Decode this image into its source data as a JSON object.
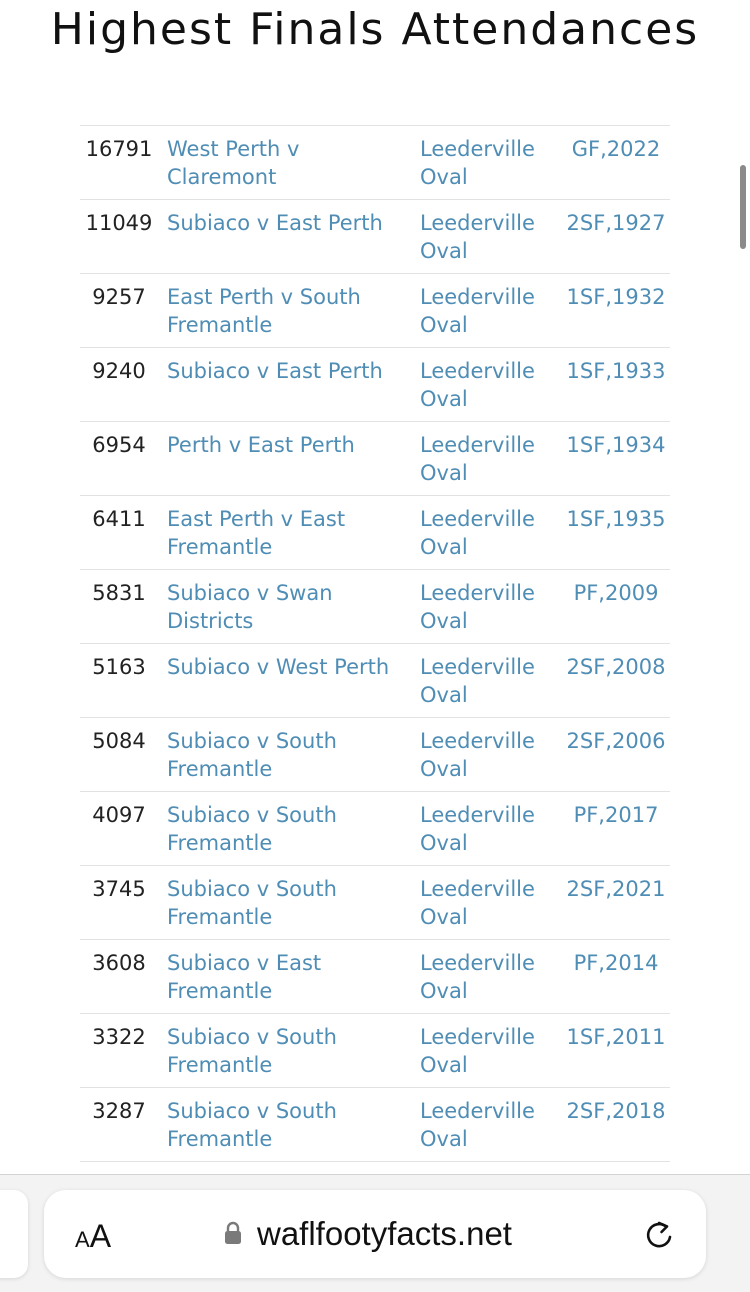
{
  "page": {
    "title": "Highest Finals Attendances"
  },
  "table": {
    "rows": [
      {
        "attendance": "16791",
        "match": "West Perth v Claremont",
        "venue": "Leederville Oval",
        "round": "GF,2022"
      },
      {
        "attendance": "11049",
        "match": "Subiaco v East Perth",
        "venue": "Leederville Oval",
        "round": "2SF,1927"
      },
      {
        "attendance": "9257",
        "match": "East Perth v South Fremantle",
        "venue": "Leederville Oval",
        "round": "1SF,1932"
      },
      {
        "attendance": "9240",
        "match": "Subiaco v East Perth",
        "venue": "Leederville Oval",
        "round": "1SF,1933"
      },
      {
        "attendance": "6954",
        "match": "Perth v East Perth",
        "venue": "Leederville Oval",
        "round": "1SF,1934"
      },
      {
        "attendance": "6411",
        "match": "East Perth v East Fremantle",
        "venue": "Leederville Oval",
        "round": "1SF,1935"
      },
      {
        "attendance": "5831",
        "match": "Subiaco v Swan Districts",
        "venue": "Leederville Oval",
        "round": "PF,2009"
      },
      {
        "attendance": "5163",
        "match": "Subiaco v West Perth",
        "venue": "Leederville Oval",
        "round": "2SF,2008"
      },
      {
        "attendance": "5084",
        "match": "Subiaco v South Fremantle",
        "venue": "Leederville Oval",
        "round": "2SF,2006"
      },
      {
        "attendance": "4097",
        "match": "Subiaco v South Fremantle",
        "venue": "Leederville Oval",
        "round": "PF,2017"
      },
      {
        "attendance": "3745",
        "match": "Subiaco v South Fremantle",
        "venue": "Leederville Oval",
        "round": "2SF,2021"
      },
      {
        "attendance": "3608",
        "match": "Subiaco v East Fremantle",
        "venue": "Leederville Oval",
        "round": "PF,2014"
      },
      {
        "attendance": "3322",
        "match": "Subiaco v South Fremantle",
        "venue": "Leederville Oval",
        "round": "1SF,2011"
      },
      {
        "attendance": "3287",
        "match": "Subiaco v South Fremantle",
        "venue": "Leederville Oval",
        "round": "2SF,2018"
      }
    ]
  },
  "browser": {
    "text_size_small": "A",
    "text_size_big": "A",
    "domain": "waflfootyfacts.net",
    "icons": {
      "lock": "lock-icon",
      "reload": "reload-icon"
    }
  },
  "colors": {
    "link": "#4f8db5",
    "text": "#222222",
    "row_border": "#e2e2e2",
    "toolbar_bg": "#f3f3f3"
  }
}
